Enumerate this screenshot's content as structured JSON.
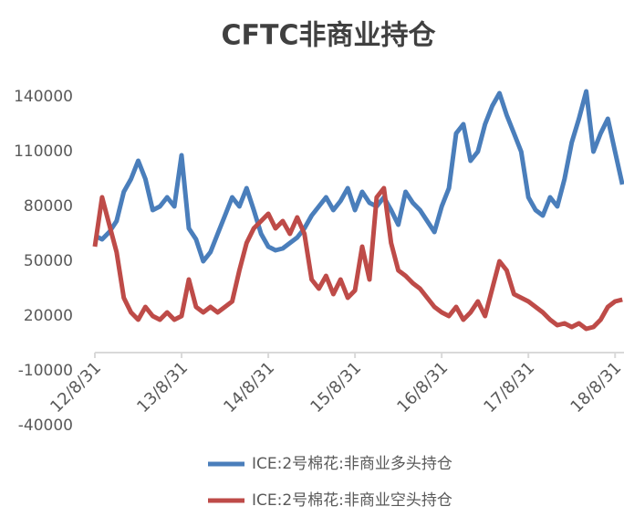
{
  "chart_data": {
    "type": "line",
    "title": "CFTC非商业持仓",
    "categories": [
      "12/8/31",
      null,
      null,
      null,
      null,
      null,
      null,
      null,
      null,
      null,
      null,
      null,
      "13/8/31",
      null,
      null,
      null,
      null,
      null,
      null,
      null,
      null,
      null,
      null,
      null,
      "14/8/31",
      null,
      null,
      null,
      null,
      null,
      null,
      null,
      null,
      null,
      null,
      null,
      "15/8/31",
      null,
      null,
      null,
      null,
      null,
      null,
      null,
      null,
      null,
      null,
      null,
      "16/8/31",
      null,
      null,
      null,
      null,
      null,
      null,
      null,
      null,
      null,
      null,
      null,
      "17/8/31",
      null,
      null,
      null,
      null,
      null,
      null,
      null,
      null,
      null,
      null,
      null,
      "18/8/31",
      null
    ],
    "series": [
      {
        "name": "ICE:2号棉花:非商业多头持仓",
        "color": "#4a7ebb",
        "values": [
          64000,
          62000,
          66000,
          72000,
          88000,
          95000,
          105000,
          95000,
          78000,
          80000,
          85000,
          80000,
          108000,
          68000,
          62000,
          50000,
          55000,
          65000,
          75000,
          85000,
          80000,
          90000,
          78000,
          65000,
          58000,
          56000,
          57000,
          60000,
          63000,
          68000,
          75000,
          80000,
          85000,
          78000,
          83000,
          90000,
          78000,
          88000,
          82000,
          80000,
          85000,
          78000,
          70000,
          88000,
          82000,
          78000,
          72000,
          66000,
          80000,
          90000,
          120000,
          125000,
          105000,
          110000,
          125000,
          135000,
          142000,
          130000,
          120000,
          110000,
          85000,
          78000,
          75000,
          85000,
          80000,
          95000,
          115000,
          128000,
          143000,
          110000,
          120000,
          128000,
          110000,
          92000
        ]
      },
      {
        "name": "ICE:2号棉花:非商业空头持仓",
        "color": "#be4b48",
        "values": [
          58000,
          85000,
          70000,
          55000,
          30000,
          22000,
          18000,
          25000,
          20000,
          18000,
          22000,
          18000,
          20000,
          40000,
          25000,
          22000,
          25000,
          22000,
          25000,
          28000,
          45000,
          60000,
          68000,
          72000,
          76000,
          68000,
          72000,
          65000,
          74000,
          65000,
          40000,
          35000,
          42000,
          32000,
          40000,
          30000,
          34000,
          58000,
          40000,
          85000,
          90000,
          60000,
          45000,
          42000,
          38000,
          35000,
          30000,
          25000,
          22000,
          20000,
          25000,
          18000,
          22000,
          28000,
          20000,
          35000,
          50000,
          45000,
          32000,
          30000,
          28000,
          25000,
          22000,
          18000,
          15000,
          16000,
          14000,
          16000,
          13000,
          14000,
          18000,
          25000,
          28000,
          29000
        ]
      }
    ],
    "ylim": [
      -40000,
      140000
    ],
    "yticks": [
      -40000,
      -10000,
      20000,
      50000,
      80000,
      110000,
      140000
    ]
  }
}
